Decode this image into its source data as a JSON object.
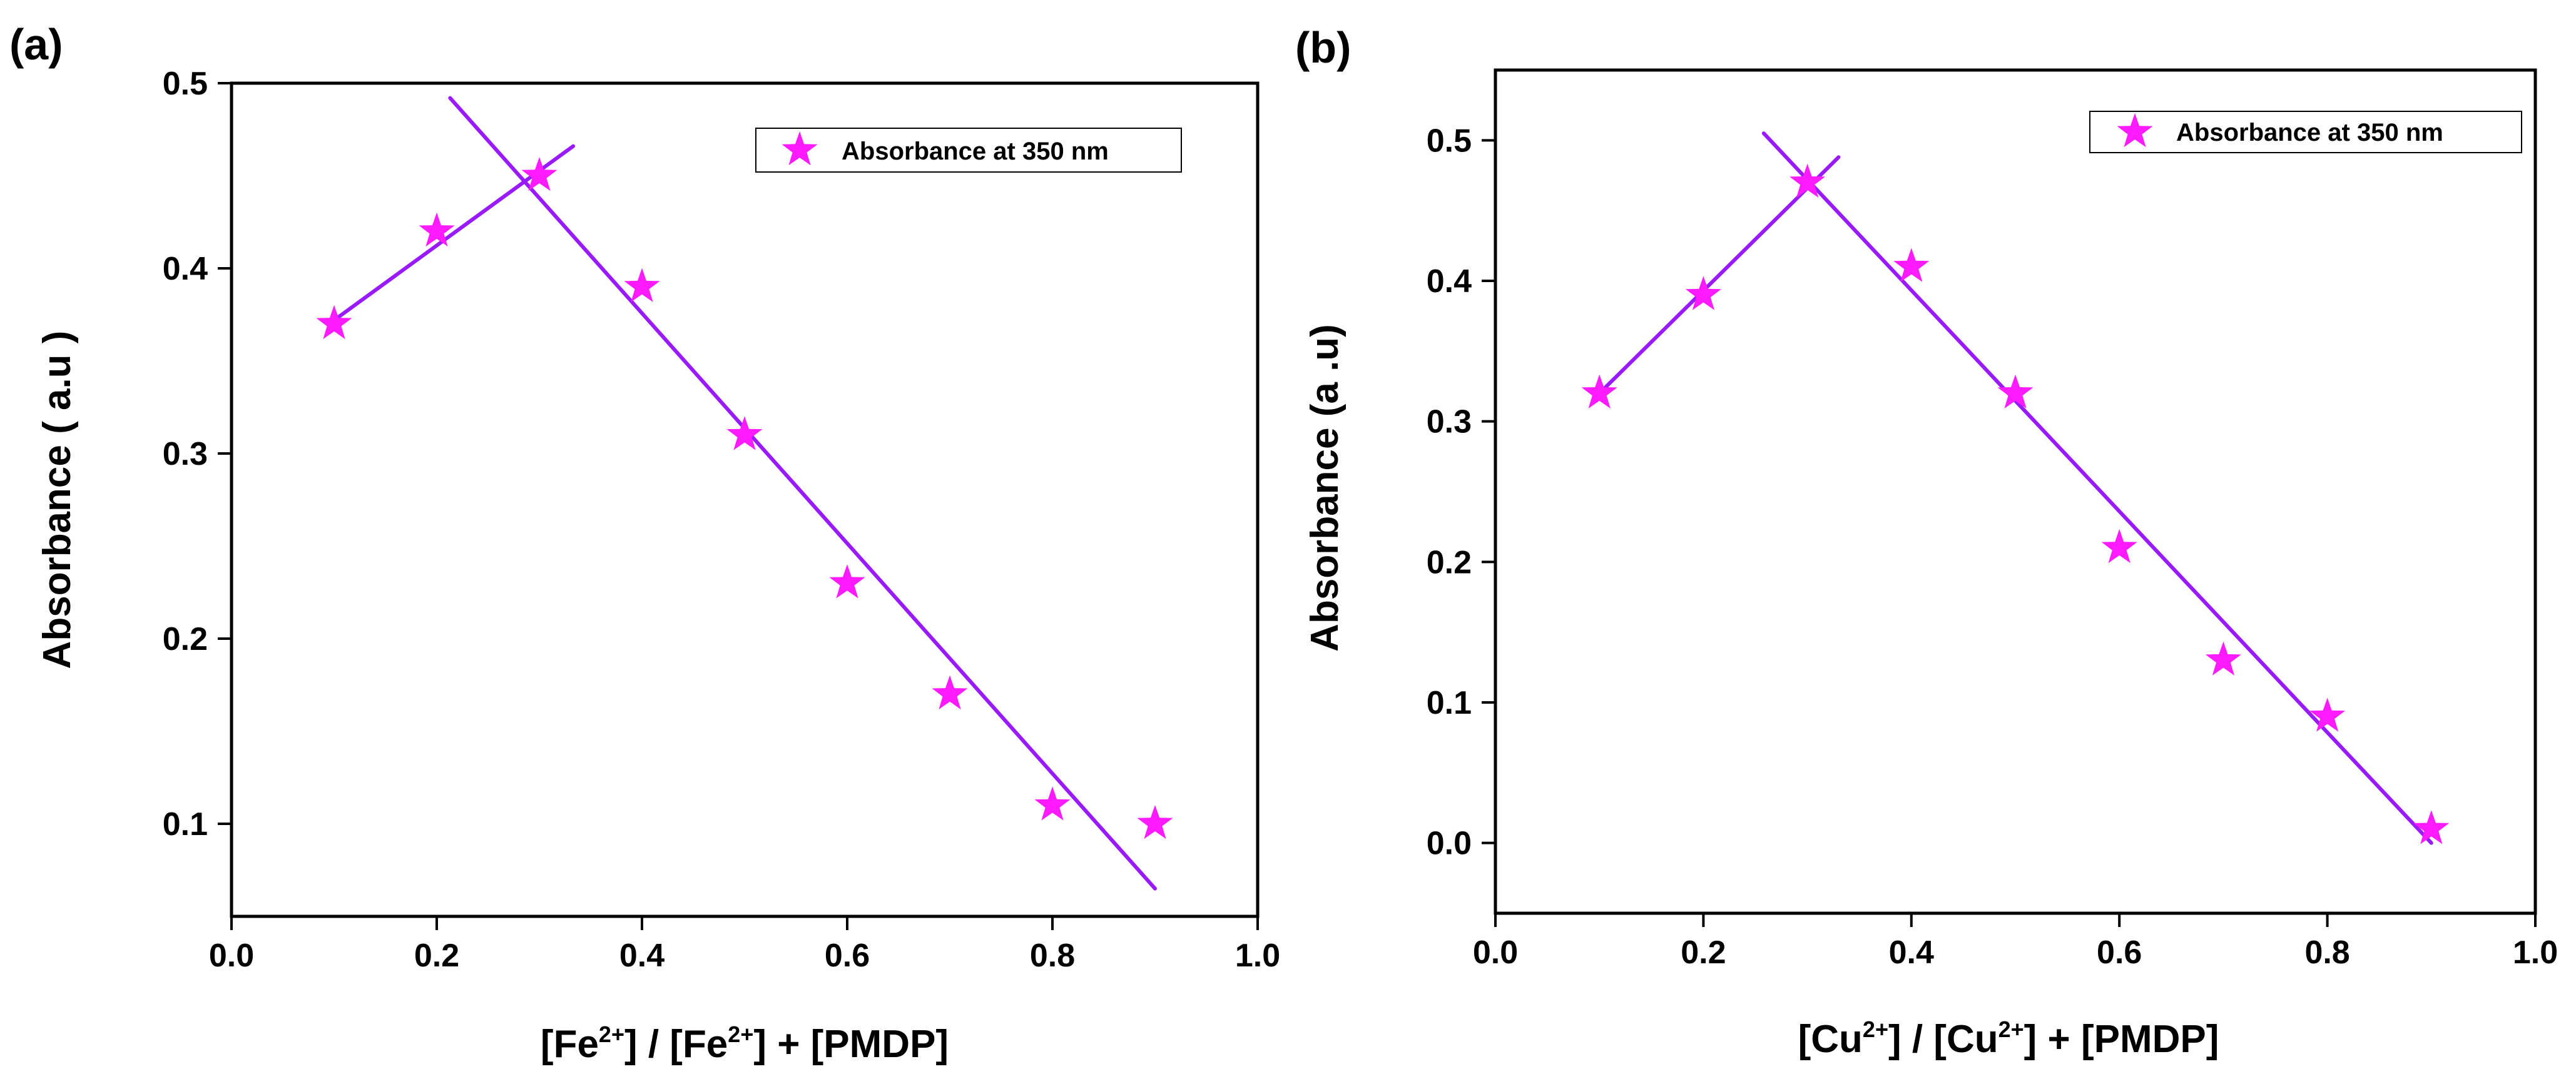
{
  "colors": {
    "marker": "#ff1aff",
    "fit_line": "#9a1aff",
    "axis": "#000000"
  },
  "chart_data": [
    {
      "panel_label": "(a)",
      "type": "scatter",
      "title": "",
      "xlabel": {
        "p1": "[Fe",
        "s1": "2+",
        "p2": "] / [Fe",
        "s2": "2+",
        "p3": "] + [PMDP]"
      },
      "ylabel": "Absorbance ( a.u )",
      "xlim": [
        0.0,
        1.0
      ],
      "ylim": [
        0.05,
        0.5
      ],
      "xticks": [
        "0.0",
        "0.2",
        "0.4",
        "0.6",
        "0.8",
        "1.0"
      ],
      "xtick_values": [
        0.0,
        0.2,
        0.4,
        0.6,
        0.8,
        1.0
      ],
      "yticks": [
        "0.1",
        "0.2",
        "0.3",
        "0.4",
        "0.5"
      ],
      "ytick_values": [
        0.1,
        0.2,
        0.3,
        0.4,
        0.5
      ],
      "legend": "Absorbance at 350 nm",
      "legend_position": "top-right",
      "series": [
        {
          "name": "Absorbance at 350 nm",
          "marker": "star",
          "x": [
            0.1,
            0.2,
            0.3,
            0.4,
            0.5,
            0.6,
            0.7,
            0.8,
            0.9
          ],
          "y": [
            0.37,
            0.42,
            0.45,
            0.39,
            0.31,
            0.23,
            0.17,
            0.11,
            0.1
          ]
        }
      ],
      "fit_lines": [
        {
          "x": [
            0.1,
            0.333
          ],
          "y": [
            0.372,
            0.466
          ]
        },
        {
          "x": [
            0.213,
            0.9
          ],
          "y": [
            0.492,
            0.065
          ]
        }
      ]
    },
    {
      "panel_label": "(b)",
      "type": "scatter",
      "title": "",
      "xlabel": {
        "p1": "[Cu",
        "s1": "2+",
        "p2": "] / [Cu",
        "s2": "2+",
        "p3": "] + [PMDP]"
      },
      "ylabel": "Absorbance (a .u)",
      "xlim": [
        0.0,
        1.0
      ],
      "ylim": [
        -0.05,
        0.55
      ],
      "xticks": [
        "0.0",
        "0.2",
        "0.4",
        "0.6",
        "0.8",
        "1.0"
      ],
      "xtick_values": [
        0.0,
        0.2,
        0.4,
        0.6,
        0.8,
        1.0
      ],
      "yticks": [
        "0.0",
        "0.1",
        "0.2",
        "0.3",
        "0.4",
        "0.5"
      ],
      "ytick_values": [
        0.0,
        0.1,
        0.2,
        0.3,
        0.4,
        0.5
      ],
      "legend": "Absorbance at 350 nm",
      "legend_position": "top-right",
      "series": [
        {
          "name": "Absorbance at 350 nm",
          "marker": "star",
          "x": [
            0.1,
            0.2,
            0.3,
            0.4,
            0.5,
            0.6,
            0.7,
            0.8,
            0.9
          ],
          "y": [
            0.32,
            0.39,
            0.47,
            0.41,
            0.32,
            0.21,
            0.13,
            0.09,
            0.01
          ]
        }
      ],
      "fit_lines": [
        {
          "x": [
            0.1,
            0.33
          ],
          "y": [
            0.32,
            0.488
          ]
        },
        {
          "x": [
            0.258,
            0.9
          ],
          "y": [
            0.505,
            0.0
          ]
        }
      ]
    }
  ]
}
